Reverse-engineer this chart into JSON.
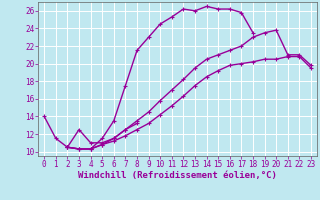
{
  "background_color": "#c0e8f0",
  "grid_color": "#aaccdd",
  "line_color": "#990099",
  "markersize": 2.5,
  "linewidth": 1.0,
  "xlabel": "Windchill (Refroidissement éolien,°C)",
  "xlabel_fontsize": 6.5,
  "xlim": [
    -0.5,
    23.5
  ],
  "ylim": [
    9.5,
    27
  ],
  "yticks": [
    10,
    12,
    14,
    16,
    18,
    20,
    22,
    24,
    26
  ],
  "xticks": [
    0,
    1,
    2,
    3,
    4,
    5,
    6,
    7,
    8,
    9,
    10,
    11,
    12,
    13,
    14,
    15,
    16,
    17,
    18,
    19,
    20,
    21,
    22,
    23
  ],
  "tick_fontsize": 5.5,
  "series": [
    {
      "x": [
        0,
        1,
        2,
        3,
        4,
        5,
        6,
        7,
        8,
        9,
        10,
        11,
        12,
        13,
        14,
        15,
        16,
        17,
        18
      ],
      "y": [
        14.0,
        11.5,
        10.5,
        10.3,
        10.3,
        11.5,
        13.5,
        17.5,
        21.5,
        23.0,
        24.5,
        25.3,
        26.2,
        26.0,
        26.5,
        26.2,
        26.2,
        25.8,
        23.5
      ]
    },
    {
      "x": [
        2,
        3,
        4,
        5,
        6,
        7,
        8,
        9,
        10,
        11,
        12,
        13,
        14,
        15,
        16,
        17,
        18,
        19,
        20,
        21,
        22,
        23
      ],
      "y": [
        10.5,
        10.3,
        10.3,
        10.8,
        11.2,
        11.8,
        12.5,
        13.2,
        14.2,
        15.2,
        16.3,
        17.5,
        18.5,
        19.2,
        19.8,
        20.0,
        20.2,
        20.5,
        20.5,
        20.8,
        20.8,
        19.5
      ]
    },
    {
      "x": [
        2,
        3,
        4,
        5,
        6,
        7,
        8,
        9,
        10,
        11,
        12,
        13,
        14,
        15,
        16,
        17,
        18,
        19,
        20,
        21,
        22,
        23
      ],
      "y": [
        10.5,
        10.3,
        10.3,
        10.8,
        11.5,
        12.5,
        13.5,
        14.5,
        15.8,
        17.0,
        18.2,
        19.5,
        20.5,
        21.0,
        21.5,
        22.0,
        23.0,
        23.5,
        23.8,
        21.0,
        21.0,
        19.8
      ]
    },
    {
      "x": [
        2,
        3,
        4,
        5,
        6,
        7,
        8
      ],
      "y": [
        10.5,
        12.5,
        11.0,
        11.0,
        11.5,
        12.5,
        13.2
      ]
    }
  ]
}
